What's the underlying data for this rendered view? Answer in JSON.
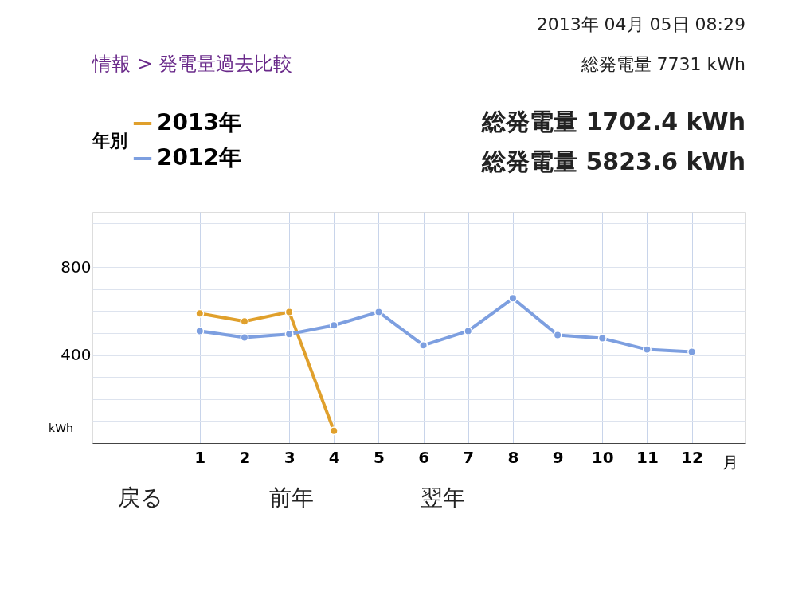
{
  "chart_data": {
    "type": "line",
    "title": "情報 > 発電量過去比較",
    "xlabel": "月",
    "ylabel": "kWh",
    "legend_title": "年別",
    "annotations": [
      "2013年 04月 05日 08:29",
      "総発電量 7731 kWh",
      "総発電量 1702.4 kWh",
      "総発電量 5823.6 kWh",
      "戻る",
      "前年",
      "翌年"
    ],
    "x": [
      1,
      2,
      3,
      4,
      5,
      6,
      7,
      8,
      9,
      10,
      11,
      12
    ],
    "series": [
      {
        "name": "2013年",
        "color": "#e0a02c",
        "values": [
          589,
          553,
          596,
          55,
          null,
          null,
          null,
          null,
          null,
          null,
          null,
          null
        ]
      },
      {
        "name": "2012年",
        "color": "#7d9fe0",
        "values": [
          509,
          480,
          495,
          535,
          596,
          444,
          509,
          658,
          491,
          476,
          425,
          415
        ]
      }
    ],
    "xlim": [
      -1.4,
      13.2
    ],
    "xticks": [
      1,
      2,
      3,
      4,
      5,
      6,
      7,
      8,
      9,
      10,
      11,
      12
    ],
    "ylim": [
      0,
      1050
    ],
    "yticks": [
      {
        "value": 100,
        "label": null
      },
      {
        "value": 200,
        "label": null
      },
      {
        "value": 300,
        "label": null
      },
      400,
      {
        "value": 500,
        "label": null
      },
      {
        "value": 600,
        "label": null
      },
      {
        "value": 700,
        "label": null
      },
      800,
      {
        "value": 900,
        "label": null
      },
      {
        "value": 1000,
        "label": null
      }
    ],
    "grid": true,
    "legend": "top left",
    "marker": "circle",
    "line_style": "solid"
  }
}
